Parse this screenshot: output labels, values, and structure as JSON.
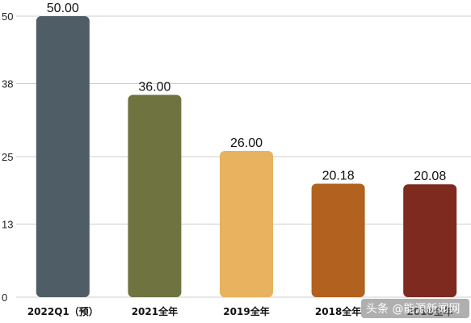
{
  "chart_data": {
    "type": "bar",
    "categories": [
      "2022Q1（预）",
      "2021全年",
      "2019全年",
      "2018全年",
      "2018全年"
    ],
    "values": [
      50.0,
      36.0,
      26.0,
      20.18,
      20.08
    ],
    "value_labels": [
      "50.00",
      "36.00",
      "26.00",
      "20.18",
      "20.08"
    ],
    "yticks": [
      0,
      13,
      25,
      38,
      50
    ],
    "ylim": [
      0,
      50
    ],
    "colors": [
      "#4f5e66",
      "#6e7340",
      "#e8b25e",
      "#b2621e",
      "#7e2a1f"
    ],
    "grid": true,
    "title": "",
    "xlabel": "",
    "ylabel": ""
  },
  "watermark": "头条 @能源新闻网"
}
